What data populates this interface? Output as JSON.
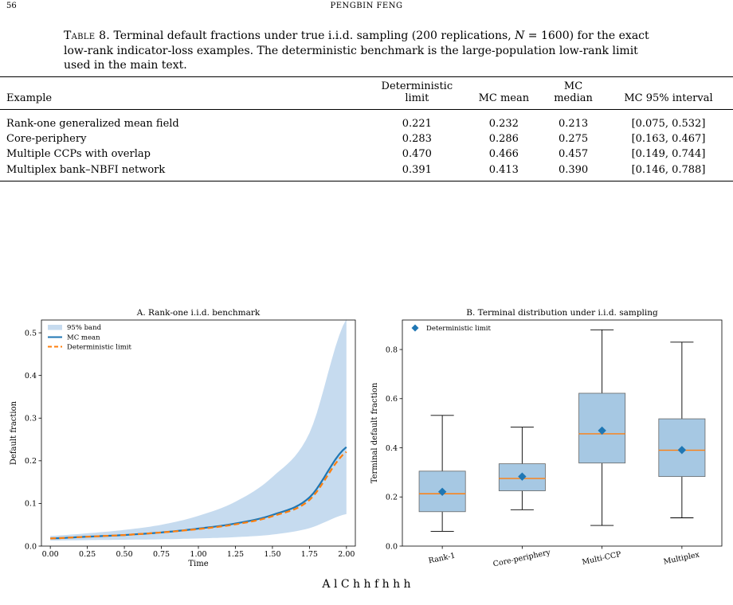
{
  "header": {
    "page_number": "56",
    "running_head": "PENGBIN FENG"
  },
  "caption": {
    "label": "Table 8.",
    "text_1": "Terminal default fractions under true i.i.d. sampling (200 replications, ",
    "n_symbol": "N",
    "text_2": " = 1600) for the exact low-rank indicator-loss examples. The deterministic benchmark is the large-population low-rank limit used in the main text."
  },
  "table": {
    "headers": [
      "Example",
      "Deterministic limit",
      "MC mean",
      "MC median",
      "MC 95% interval"
    ],
    "rows": [
      [
        "Rank-one generalized mean field",
        "0.221",
        "0.232",
        "0.213",
        "[0.075, 0.532]"
      ],
      [
        "Core-periphery",
        "0.283",
        "0.286",
        "0.275",
        "[0.163, 0.467]"
      ],
      [
        "Multiple CCPs with overlap",
        "0.470",
        "0.466",
        "0.457",
        "[0.149, 0.744]"
      ],
      [
        "Multiplex bank–NBFI network",
        "0.391",
        "0.413",
        "0.390",
        "[0.146, 0.788]"
      ]
    ]
  },
  "chart_data": [
    {
      "type": "line",
      "title": "A. Rank-one i.i.d. benchmark",
      "xlabel": "Time",
      "ylabel": "Default fraction",
      "xlim": [
        -0.06,
        2.06
      ],
      "ylim": [
        0.0,
        0.53
      ],
      "xticks": [
        "0.00",
        "0.25",
        "0.50",
        "0.75",
        "1.00",
        "1.25",
        "1.50",
        "1.75",
        "2.00"
      ],
      "yticks": [
        "0.0",
        "0.1",
        "0.2",
        "0.3",
        "0.4",
        "0.5"
      ],
      "legend_position": "top-left",
      "x": [
        0.0,
        0.25,
        0.5,
        0.75,
        1.0,
        1.25,
        1.5,
        1.75,
        2.0
      ],
      "series": [
        {
          "name": "MC mean",
          "values": [
            0.018,
            0.022,
            0.026,
            0.032,
            0.041,
            0.053,
            0.073,
            0.114,
            0.232
          ],
          "color": "#1f77b4"
        },
        {
          "name": "Deterministic limit",
          "values": [
            0.018,
            0.022,
            0.026,
            0.032,
            0.04,
            0.051,
            0.07,
            0.108,
            0.221
          ],
          "color": "#ff7f0e"
        }
      ],
      "band": {
        "name": "95% band",
        "lower": [
          0.013,
          0.014,
          0.015,
          0.016,
          0.018,
          0.021,
          0.027,
          0.042,
          0.075
        ],
        "upper": [
          0.024,
          0.03,
          0.038,
          0.05,
          0.071,
          0.104,
          0.162,
          0.265,
          0.532
        ],
        "color": "#c6dbef"
      }
    },
    {
      "type": "box",
      "title": "B. Terminal distribution under i.i.d. sampling",
      "ylabel": "Terminal default fraction",
      "categories": [
        "Rank-1",
        "Core-periphery",
        "Multi-CCP",
        "Multiplex"
      ],
      "ylim": [
        0.0,
        0.92
      ],
      "yticks": [
        "0.0",
        "0.2",
        "0.4",
        "0.6",
        "0.8"
      ],
      "legend_position": "top-left",
      "boxes": [
        {
          "whislo": 0.06,
          "q1": 0.14,
          "med": 0.213,
          "q3": 0.305,
          "whishi": 0.532
        },
        {
          "whislo": 0.148,
          "q1": 0.225,
          "med": 0.275,
          "q3": 0.335,
          "whishi": 0.484
        },
        {
          "whislo": 0.084,
          "q1": 0.338,
          "med": 0.457,
          "q3": 0.622,
          "whishi": 0.88
        },
        {
          "whislo": 0.115,
          "q1": 0.283,
          "med": 0.39,
          "q3": 0.518,
          "whishi": 0.83
        }
      ],
      "markers": {
        "name": "Deterministic limit",
        "values": [
          0.221,
          0.283,
          0.47,
          0.391
        ],
        "color": "#1f77b4"
      },
      "box_color": "#a6c8e3",
      "median_color": "#ff7f0e"
    }
  ],
  "footer_text": "A      l                  C  h h                  f                                  h         h             h"
}
